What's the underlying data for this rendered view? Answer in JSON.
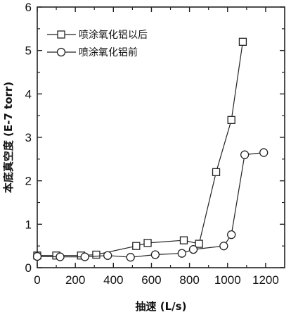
{
  "chart_data": {
    "type": "line",
    "xlabel": "抽速 (L/s)",
    "ylabel": "本底真空度 (E-7 torr)",
    "xlim": [
      0,
      1300
    ],
    "ylim": [
      0,
      6
    ],
    "xticks": [
      0,
      200,
      400,
      600,
      800,
      1000,
      1200
    ],
    "yticks": [
      0,
      1,
      2,
      3,
      4,
      5,
      6
    ],
    "grid": false,
    "legend_position": "top-left",
    "series": [
      {
        "name": "喷涂氧化铝以后",
        "marker": "square",
        "x": [
          0,
          100,
          230,
          310,
          520,
          580,
          770,
          850,
          940,
          1020,
          1080
        ],
        "y": [
          0.28,
          0.28,
          0.28,
          0.3,
          0.5,
          0.57,
          0.63,
          0.55,
          2.2,
          3.4,
          5.2
        ]
      },
      {
        "name": "喷涂氧化铝前",
        "marker": "circle",
        "x": [
          0,
          120,
          250,
          370,
          490,
          620,
          760,
          820,
          980,
          1020,
          1090,
          1190
        ],
        "y": [
          0.26,
          0.25,
          0.25,
          0.28,
          0.24,
          0.3,
          0.33,
          0.42,
          0.5,
          0.76,
          2.6,
          2.65
        ]
      }
    ]
  }
}
